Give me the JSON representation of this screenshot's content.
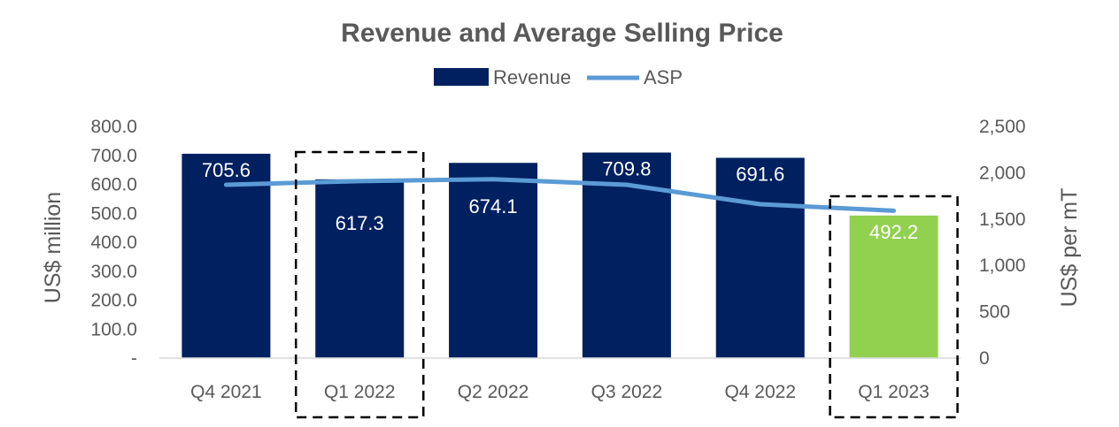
{
  "chart_data": {
    "type": "bar",
    "title": "Revenue and Average Selling Price",
    "categories": [
      "Q4 2021",
      "Q1 2022",
      "Q2 2022",
      "Q3 2022",
      "Q4 2022",
      "Q1 2023"
    ],
    "series": [
      {
        "name": "Revenue",
        "type": "bar",
        "axis": "left",
        "color": "#002060",
        "values": [
          705.6,
          617.3,
          674.1,
          709.8,
          691.6,
          492.2
        ],
        "data_labels": [
          "705.6",
          "617.3",
          "674.1",
          "709.8",
          "691.6",
          "492.2"
        ]
      },
      {
        "name": "ASP",
        "type": "line",
        "axis": "right",
        "color": "#5B9BD5",
        "values": [
          1870,
          1910,
          1930,
          1870,
          1660,
          1590
        ]
      }
    ],
    "highlight_color": "#92D050",
    "highlighted_categories": [
      "Q1 2022",
      "Q1 2023"
    ],
    "highlight_style": "dashed-box",
    "ylabel": "US$ million",
    "ylabel_right": "US$ per mT",
    "ylim": [
      0,
      800
    ],
    "ylim_right": [
      0,
      2500
    ],
    "yticks": [
      "-",
      "100.0",
      "200.0",
      "300.0",
      "400.0",
      "500.0",
      "600.0",
      "700.0",
      "800.0"
    ],
    "yticks_right": [
      "0",
      "500",
      "1,000",
      "1,500",
      "2,000",
      "2,500"
    ],
    "legend_position": "top-center",
    "grid": false
  }
}
